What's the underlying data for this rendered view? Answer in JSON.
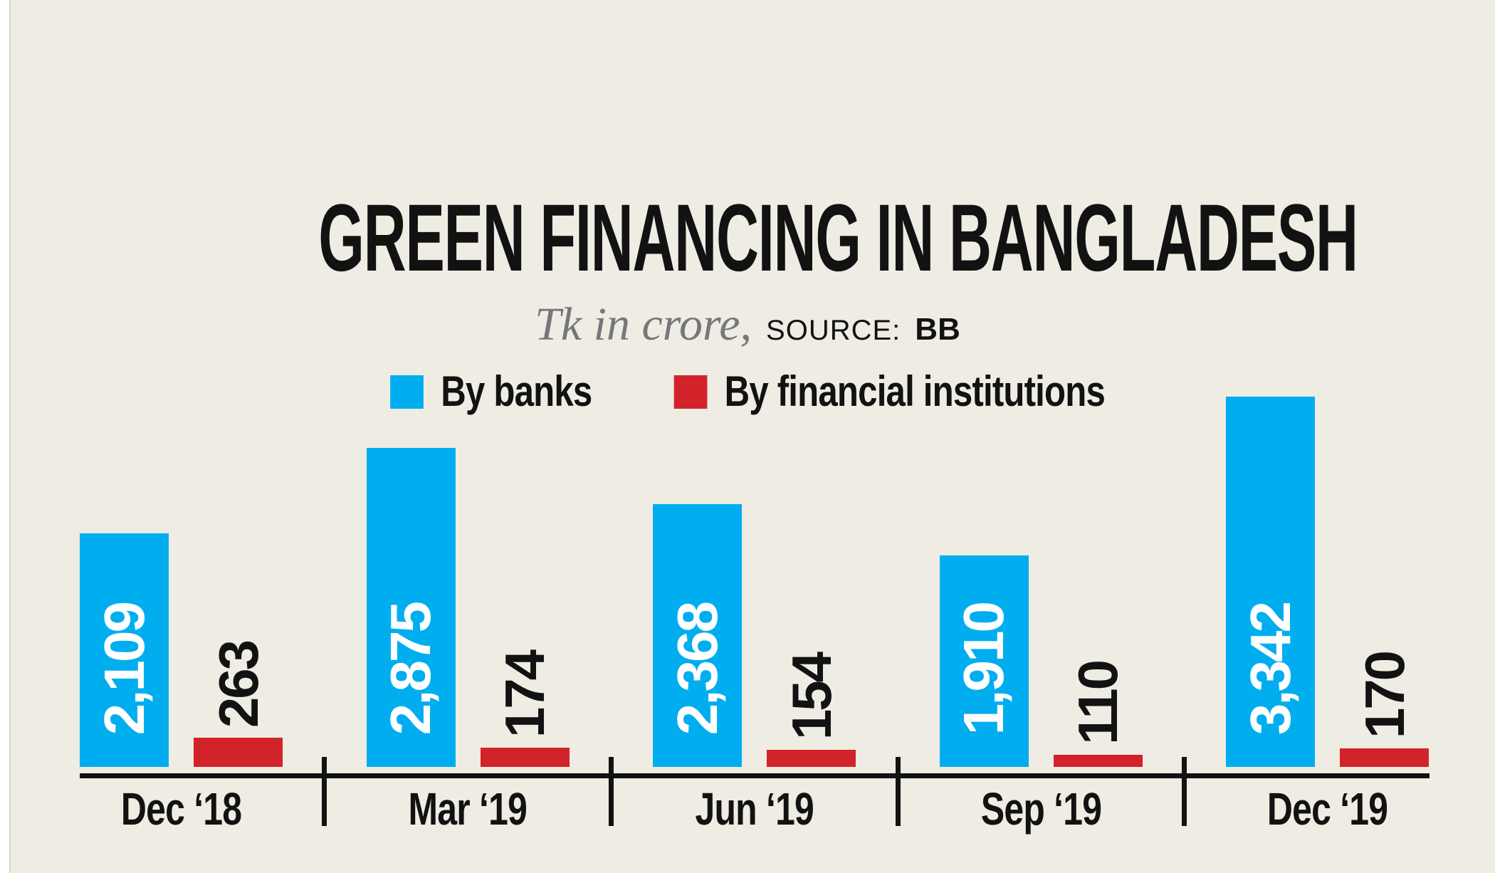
{
  "page": {
    "background_color": "#efece3",
    "left_edge_color": "#ffffff"
  },
  "header": {
    "title": "GREEN FINANCING IN BANGLADESH",
    "subtitle": "Tk in crore,",
    "source_label": "SOURCE:",
    "source_value": "BB"
  },
  "legend": {
    "items": [
      {
        "label": "By banks",
        "color": "#00aeef"
      },
      {
        "label": "By financial institutions",
        "color": "#d2232a"
      }
    ]
  },
  "chart_data": {
    "type": "bar",
    "title": "GREEN FINANCING IN BANGLADESH",
    "subtitle": "Tk in crore",
    "source": "BB",
    "categories": [
      "Dec ‘18",
      "Mar ‘19",
      "Jun ‘19",
      "Sep ‘19",
      "Dec ‘19"
    ],
    "series": [
      {
        "name": "By banks",
        "color": "#00aeef",
        "values": [
          2109,
          2875,
          2368,
          1910,
          3342
        ],
        "labels": [
          "2,109",
          "2,875",
          "2,368",
          "1,910",
          "3,342"
        ],
        "label_color": "#ffffff",
        "label_style": "rotated-90 inside bar, white"
      },
      {
        "name": "By financial institutions",
        "color": "#d2232a",
        "values": [
          263,
          174,
          154,
          110,
          170
        ],
        "labels": [
          "263",
          "174",
          "154",
          "110",
          "170"
        ],
        "label_color": "#121212",
        "label_style": "rotated-90 above bar, black"
      }
    ],
    "ylim": [
      0,
      3400
    ],
    "xlabel": "",
    "ylabel": "",
    "grid": false,
    "y_axis_shown": false,
    "legend_position": "top-center",
    "axis_color": "#121212"
  },
  "colors": {
    "background": "#efece3",
    "blue": "#00aeef",
    "red": "#d2232a",
    "text": "#121212",
    "subtitle_gray": "#76777a",
    "white": "#ffffff"
  }
}
